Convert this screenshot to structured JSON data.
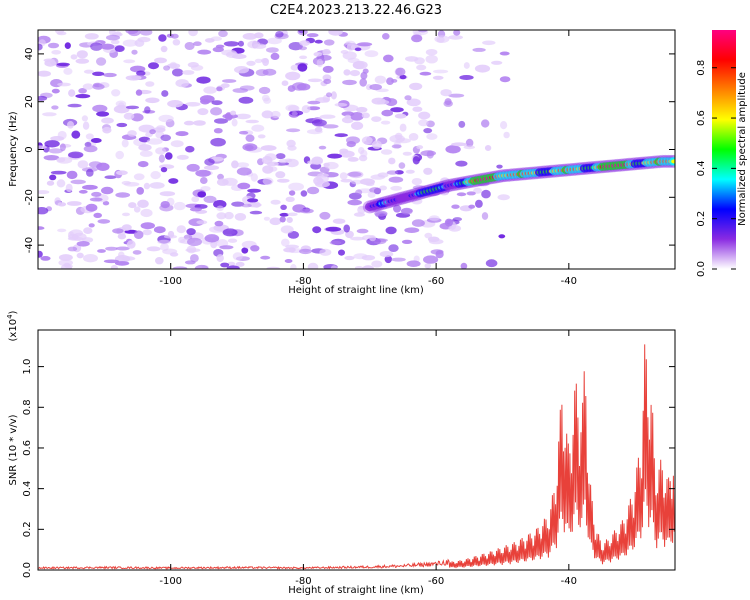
{
  "figure": {
    "title": "C2E4.2023.213.22.46.G23"
  },
  "chart_data": [
    {
      "type": "heatmap",
      "xlabel": "Height of straight line (km)",
      "ylabel": "Frequency (Hz)",
      "xlim": [
        -120,
        -24
      ],
      "ylim": [
        -50,
        50
      ],
      "xticks": [
        -100,
        -80,
        -60,
        -40
      ],
      "yticks": [
        -40,
        -20,
        0,
        20,
        40
      ],
      "signal_track": {
        "x": [
          -70,
          -66,
          -62,
          -58,
          -54,
          -50,
          -46,
          -42,
          -38,
          -34,
          -30,
          -26,
          -24
        ],
        "y": [
          -24,
          -21,
          -18,
          -15,
          -13,
          -11,
          -10,
          -9,
          -8,
          -7,
          -6,
          -5,
          -5
        ],
        "peak_amplitude_near_x": [
          -52,
          -33
        ]
      },
      "noise_region": {
        "x_from": -120,
        "x_to": -55,
        "amplitude": 0.15
      },
      "colorbar": {
        "label": "Normalized spectral amplitude",
        "range": [
          0,
          0.95
        ],
        "ticks": [
          0.0,
          0.2,
          0.4,
          0.6,
          0.8
        ],
        "colormap": [
          "#ffffff",
          "#8a2be2",
          "#0000ff",
          "#00ffff",
          "#00ff00",
          "#ffff00",
          "#ff8000",
          "#ff0000",
          "#ff0080"
        ]
      }
    },
    {
      "type": "line",
      "xlabel": "Height of straight line (km)",
      "ylabel": "SNR (10 * v/v)",
      "y_multiplier_label": "(x10",
      "y_multiplier_exp": "4",
      "xlim": [
        -120,
        -24
      ],
      "ylim": [
        0,
        1.18
      ],
      "xticks": [
        -100,
        -80,
        -60,
        -40
      ],
      "yticks": [
        "0.0",
        "0.2",
        "0.4",
        "0.6",
        "0.8",
        "1.0"
      ],
      "color": "#e8413a",
      "series": [
        {
          "x": [
            -120,
            -110,
            -100,
            -90,
            -80,
            -70,
            -65,
            -60,
            -56,
            -52,
            -48,
            -45,
            -43,
            -42,
            -41,
            -40,
            -39,
            -38,
            -37.5,
            -37,
            -36,
            -35,
            -34,
            -33,
            -32,
            -31,
            -30,
            -29,
            -28.5,
            -28,
            -27.5,
            -27,
            -26,
            -25,
            -24
          ],
          "y": [
            0.01,
            0.012,
            0.01,
            0.012,
            0.01,
            0.015,
            0.02,
            0.03,
            0.05,
            0.09,
            0.14,
            0.2,
            0.28,
            0.45,
            0.92,
            0.6,
            0.95,
            0.78,
            1.13,
            0.5,
            0.22,
            0.13,
            0.16,
            0.2,
            0.24,
            0.32,
            0.45,
            0.7,
            1.17,
            0.95,
            0.88,
            0.5,
            0.55,
            0.45,
            0.62
          ]
        }
      ]
    }
  ]
}
